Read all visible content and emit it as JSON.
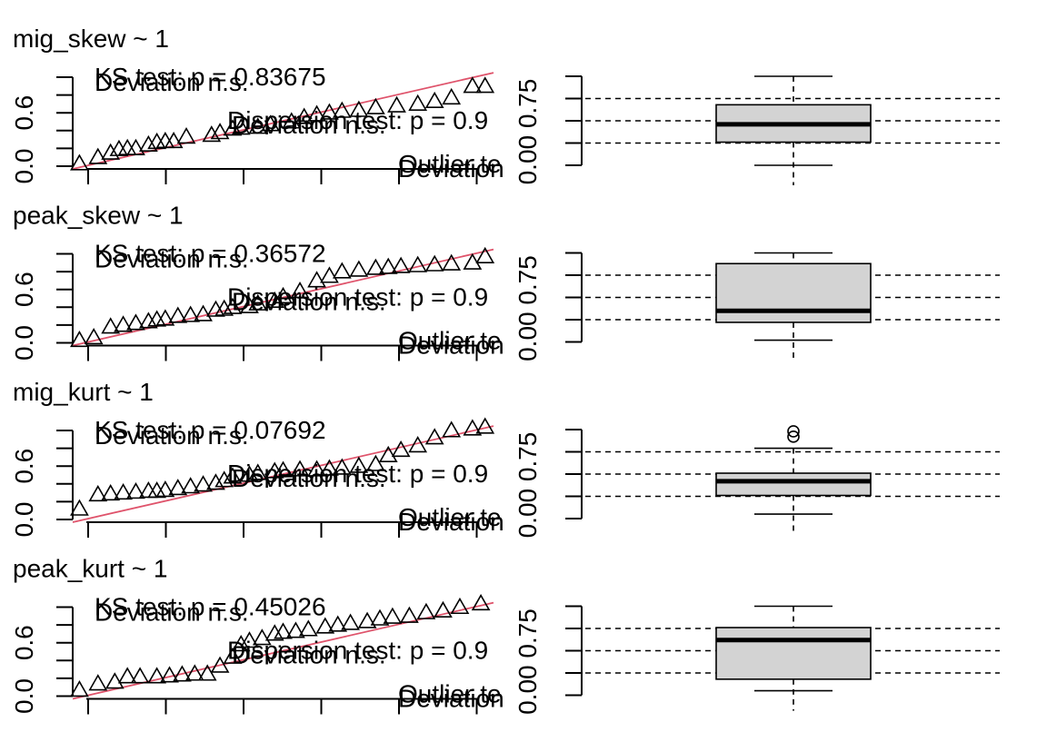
{
  "chart_data": [
    {
      "type": "scatter",
      "title": "mig_skew ~ 1",
      "qq": {
        "expected": [
          0.016,
          0.06,
          0.09,
          0.11,
          0.13,
          0.15,
          0.18,
          0.2,
          0.22,
          0.24,
          0.27,
          0.33,
          0.35,
          0.38,
          0.4,
          0.44,
          0.47,
          0.52,
          0.55,
          0.58,
          0.61,
          0.64,
          0.68,
          0.72,
          0.77,
          0.82,
          0.86,
          0.9,
          0.95,
          0.98
        ],
        "observed": [
          0.03,
          0.1,
          0.15,
          0.19,
          0.2,
          0.2,
          0.24,
          0.27,
          0.28,
          0.28,
          0.33,
          0.35,
          0.38,
          0.42,
          0.43,
          0.44,
          0.47,
          0.5,
          0.55,
          0.58,
          0.6,
          0.62,
          0.63,
          0.66,
          0.68,
          0.7,
          0.73,
          0.77,
          0.9,
          0.9
        ],
        "ylim": [
          0,
          1
        ],
        "yticks": [
          "0.0",
          "",
          "",
          "0.6",
          "",
          ""
        ]
      },
      "tests": {
        "ks_label": "KS test: p = 0.83675",
        "ks_deviation": "Deviation n.s.",
        "dispersion_label": "Dispersion test: p = 0.9",
        "dispersion_deviation": "Deviation n.s.",
        "outlier_label": "Outlier te",
        "outlier_deviation": "Deviation"
      },
      "boxplot": {
        "whisker_low": 0.0,
        "q1": 0.26,
        "median": 0.46,
        "q3": 0.68,
        "whisker_high": 1.0,
        "outliers": [],
        "reference_lines": [
          0.25,
          0.5,
          0.75
        ],
        "ylim": [
          0,
          1
        ],
        "ytick_label": "0.00 0.75"
      }
    },
    {
      "type": "scatter",
      "title": "peak_skew ~ 1",
      "qq": {
        "expected": [
          0.016,
          0.05,
          0.09,
          0.12,
          0.15,
          0.18,
          0.2,
          0.22,
          0.25,
          0.28,
          0.31,
          0.34,
          0.36,
          0.38,
          0.42,
          0.44,
          0.48,
          0.5,
          0.54,
          0.58,
          0.61,
          0.64,
          0.68,
          0.72,
          0.75,
          0.78,
          0.82,
          0.86,
          0.9,
          0.95,
          0.98
        ],
        "observed": [
          0.03,
          0.06,
          0.18,
          0.2,
          0.22,
          0.24,
          0.26,
          0.27,
          0.3,
          0.31,
          0.32,
          0.37,
          0.38,
          0.4,
          0.41,
          0.44,
          0.47,
          0.52,
          0.58,
          0.7,
          0.75,
          0.8,
          0.82,
          0.84,
          0.85,
          0.86,
          0.87,
          0.88,
          0.89,
          0.9,
          0.97
        ],
        "ylim": [
          0,
          1
        ],
        "yticks": [
          "0.0",
          "",
          "",
          "0.6",
          "",
          ""
        ]
      },
      "tests": {
        "ks_label": "KS test: p = 0.36572",
        "ks_deviation": "Deviation n.s.",
        "dispersion_label": "Dispersion test: p = 0.9",
        "dispersion_deviation": "Deviation n.s.",
        "outlier_label": "Outlier te",
        "outlier_deviation": "Deviation"
      },
      "boxplot": {
        "whisker_low": 0.02,
        "q1": 0.22,
        "median": 0.35,
        "q3": 0.88,
        "whisker_high": 1.0,
        "outliers": [],
        "reference_lines": [
          0.25,
          0.5,
          0.75
        ],
        "ylim": [
          0,
          1
        ],
        "ytick_label": "0.00 0.75"
      }
    },
    {
      "type": "scatter",
      "title": "mig_kurt ~ 1",
      "qq": {
        "expected": [
          0.016,
          0.06,
          0.09,
          0.12,
          0.15,
          0.18,
          0.2,
          0.22,
          0.25,
          0.28,
          0.31,
          0.34,
          0.36,
          0.38,
          0.42,
          0.44,
          0.48,
          0.5,
          0.54,
          0.58,
          0.61,
          0.64,
          0.68,
          0.72,
          0.75,
          0.78,
          0.82,
          0.86,
          0.9,
          0.95,
          0.98
        ],
        "observed": [
          0.12,
          0.28,
          0.29,
          0.3,
          0.31,
          0.32,
          0.32,
          0.33,
          0.35,
          0.37,
          0.39,
          0.41,
          0.44,
          0.48,
          0.5,
          0.52,
          0.54,
          0.55,
          0.56,
          0.56,
          0.57,
          0.58,
          0.6,
          0.62,
          0.72,
          0.78,
          0.83,
          0.92,
          1.0,
          1.02,
          1.04
        ],
        "ylim": [
          0,
          1
        ],
        "yticks": [
          "0.0",
          "",
          "",
          "0.6",
          "",
          ""
        ]
      },
      "tests": {
        "ks_label": "KS test: p = 0.07692",
        "ks_deviation": "Deviation n.s.",
        "dispersion_label": "Dispersion test: p = 0.9",
        "dispersion_deviation": "Deviation n.s.",
        "outlier_label": "Outlier te",
        "outlier_deviation": "Deviation"
      },
      "boxplot": {
        "whisker_low": 0.05,
        "q1": 0.26,
        "median": 0.42,
        "q3": 0.51,
        "whisker_high": 0.79,
        "outliers": [
          0.92,
          0.98
        ],
        "reference_lines": [
          0.25,
          0.5,
          0.75
        ],
        "ylim": [
          0,
          1
        ],
        "ytick_label": "0.00 0.75"
      }
    },
    {
      "type": "scatter",
      "title": "peak_kurt ~ 1",
      "qq": {
        "expected": [
          0.016,
          0.06,
          0.1,
          0.13,
          0.16,
          0.2,
          0.23,
          0.26,
          0.29,
          0.32,
          0.35,
          0.38,
          0.4,
          0.42,
          0.45,
          0.48,
          0.5,
          0.53,
          0.56,
          0.6,
          0.63,
          0.66,
          0.7,
          0.73,
          0.76,
          0.8,
          0.84,
          0.88,
          0.92,
          0.97
        ],
        "observed": [
          0.07,
          0.14,
          0.16,
          0.22,
          0.22,
          0.22,
          0.23,
          0.24,
          0.25,
          0.25,
          0.34,
          0.44,
          0.58,
          0.62,
          0.65,
          0.7,
          0.72,
          0.73,
          0.75,
          0.78,
          0.8,
          0.82,
          0.84,
          0.87,
          0.89,
          0.9,
          0.94,
          0.96,
          1.0,
          1.04
        ],
        "ylim": [
          0,
          1
        ],
        "yticks": [
          "0.0",
          "",
          "",
          "0.6",
          "",
          ""
        ]
      },
      "tests": {
        "ks_label": "KS test: p = 0.45026",
        "ks_deviation": "Deviation n.s.",
        "dispersion_label": "Dispersion test: p = 0.9",
        "dispersion_deviation": "Deviation n.s.",
        "outlier_label": "Outlier te",
        "outlier_deviation": "Deviation"
      },
      "boxplot": {
        "whisker_low": 0.05,
        "q1": 0.18,
        "median": 0.62,
        "q3": 0.76,
        "whisker_high": 1.0,
        "outliers": [],
        "reference_lines": [
          0.25,
          0.5,
          0.75
        ],
        "ylim": [
          0,
          1
        ],
        "ytick_label": "0.00 0.75"
      }
    }
  ],
  "colors": {
    "reference_line": "#DF536B",
    "box_fill": "#D3D3D3",
    "ink": "#000000"
  }
}
